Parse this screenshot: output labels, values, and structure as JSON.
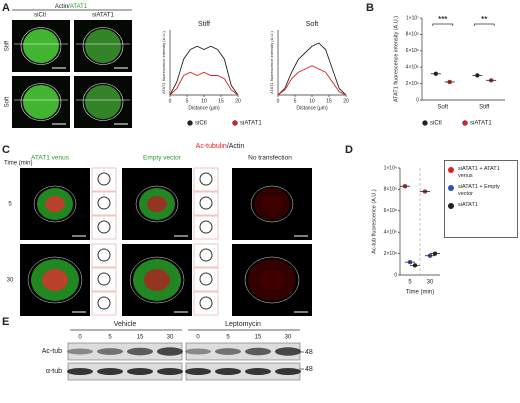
{
  "panel_labels": [
    "A",
    "B",
    "C",
    "D",
    "E"
  ],
  "panel_a": {
    "header": {
      "actin": "Actin",
      "sep": "/",
      "atat1": "ATAT1"
    },
    "columns": [
      "siCtl",
      "siATAT1"
    ],
    "rows": [
      "Stiff",
      "Soft"
    ],
    "profiles": {
      "type": "line",
      "x": [
        0,
        2,
        4,
        6,
        8,
        10,
        12,
        14,
        16,
        18,
        20
      ],
      "xlim": [
        0,
        20
      ],
      "xticks": [
        0,
        5,
        10,
        15,
        20
      ],
      "ylim": [
        0,
        10
      ],
      "y_label": "ATAT1 fluorescence intensity (A.U.)",
      "x_label": "Distance (µm)",
      "panels": [
        {
          "title": "Stiff",
          "series": [
            {
              "name": "siCtl",
              "color": "#222222",
              "values": [
                0,
                2,
                5.5,
                7,
                7.5,
                7,
                7.5,
                7,
                5.5,
                1.5,
                0
              ]
            },
            {
              "name": "siATAT1",
              "color": "#e02020",
              "values": [
                0,
                1,
                3,
                3.5,
                3,
                3.5,
                3,
                3,
                2.5,
                0.8,
                0
              ]
            }
          ]
        },
        {
          "title": "Soft",
          "series": [
            {
              "name": "siCtl",
              "color": "#222222",
              "values": [
                0,
                1,
                3.5,
                5.5,
                6.5,
                7.5,
                8,
                7,
                4,
                1,
                0
              ]
            },
            {
              "name": "siATAT1",
              "color": "#e02020",
              "values": [
                0,
                0.8,
                2.5,
                3.5,
                4,
                4.5,
                4,
                3.5,
                2,
                0.5,
                0
              ]
            }
          ]
        }
      ]
    }
  },
  "panel_b": {
    "type": "scatter",
    "y_label": "ATAT1 fluorescence intensity (A.U.)",
    "ylim": [
      0,
      10000000
    ],
    "yticks": [
      {
        "value": 0,
        "label": "0"
      },
      {
        "value": 2000000,
        "label": "2×10⁶"
      },
      {
        "value": 4000000,
        "label": "4×10⁶"
      },
      {
        "value": 6000000,
        "label": "6×10⁶"
      },
      {
        "value": 8000000,
        "label": "8×10⁶"
      },
      {
        "value": 10000000,
        "label": "1×10⁷"
      }
    ],
    "categories": [
      "Soft",
      "Stiff"
    ],
    "significance": [
      "***",
      "**"
    ],
    "series": [
      {
        "name": "siCtl",
        "color": "#222222",
        "values": [
          3200000,
          3000000
        ]
      },
      {
        "name": "siATAT1",
        "color": "#e02020",
        "values": [
          2200000,
          2400000
        ]
      }
    ]
  },
  "panel_c": {
    "title": {
      "ac": "Ac-tubulin",
      "sep": "/",
      "actin": "Actin"
    },
    "time_label": "Time (min)",
    "columns": [
      "ATAT1 venus",
      "Empty vector",
      "No transfection"
    ],
    "rows": [
      "5",
      "30"
    ]
  },
  "panel_d": {
    "type": "scatter",
    "y_label": "Ac-tub fluorescence (A.U.)",
    "x_label": "Time (min)",
    "categories": [
      "5",
      "30"
    ],
    "ylim": [
      0,
      1000000000
    ],
    "yticks": [
      {
        "value": 0,
        "label": "0"
      },
      {
        "value": 200000000,
        "label": "2×10⁸"
      },
      {
        "value": 400000000,
        "label": "4×10⁸"
      },
      {
        "value": 600000000,
        "label": "6×10⁸"
      },
      {
        "value": 800000000,
        "label": "8×10⁸"
      },
      {
        "value": 1000000000,
        "label": "1×10⁹"
      }
    ],
    "series": [
      {
        "name": "siATAT1 + ATAT1 venus",
        "color": "#e02020",
        "values": [
          830000000,
          780000000
        ]
      },
      {
        "name": "siATAT1 + Empty vector",
        "color": "#3050c0",
        "values": [
          120000000,
          180000000
        ]
      },
      {
        "name": "siATAT1",
        "color": "#222222",
        "values": [
          90000000,
          200000000
        ]
      }
    ]
  },
  "panel_e": {
    "conditions": [
      "Vehicle",
      "Leptomycin"
    ],
    "lanes": [
      "0",
      "5",
      "15",
      "30",
      "0",
      "5",
      "15",
      "30"
    ],
    "rows": [
      "Ac-tub",
      "α-tub"
    ],
    "markers": [
      "48",
      "48"
    ]
  }
}
